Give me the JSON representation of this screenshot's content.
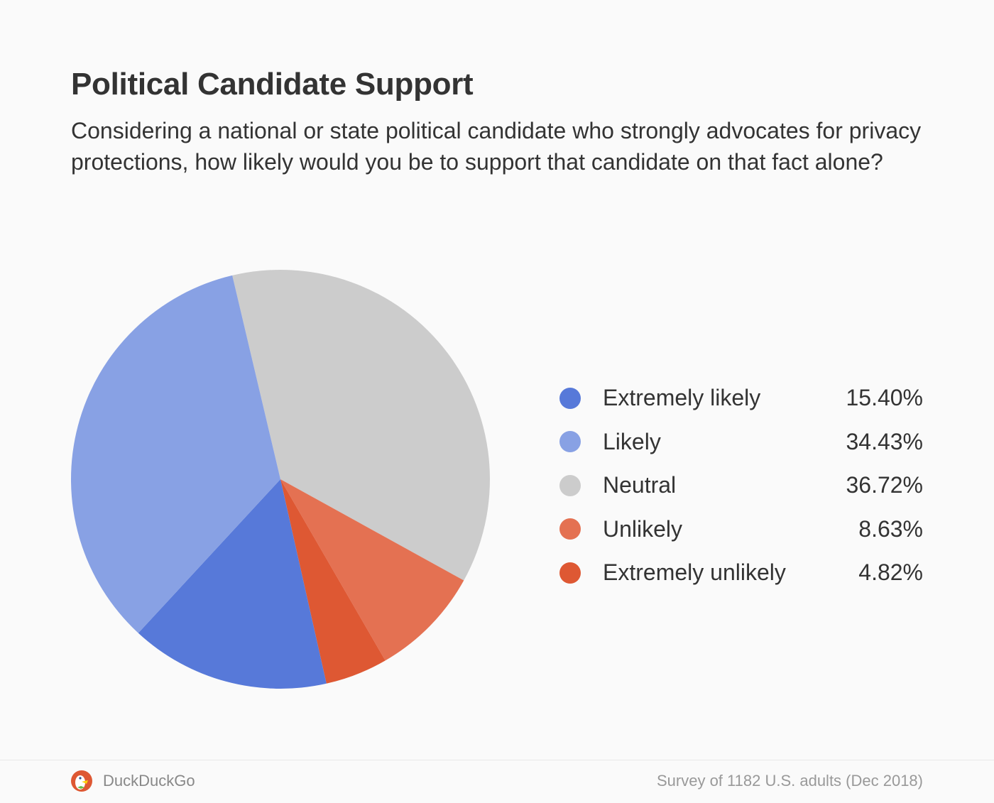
{
  "chart_data": {
    "type": "pie",
    "title": "Political Candidate Support",
    "subtitle": "Considering a national or state political candidate who strongly advocates for privacy protections, how likely would you be to support that candidate on that fact alone?",
    "legend_position": "right",
    "slices": [
      {
        "label": "Extremely likely",
        "value": 15.4,
        "display": "15.40%",
        "color": "#5779d9"
      },
      {
        "label": "Likely",
        "value": 34.43,
        "display": "34.43%",
        "color": "#88a1e4"
      },
      {
        "label": "Neutral",
        "value": 36.72,
        "display": "36.72%",
        "color": "#cccccc"
      },
      {
        "label": "Unlikely",
        "value": 8.63,
        "display": "8.63%",
        "color": "#e47152"
      },
      {
        "label": "Extremely unlikely",
        "value": 4.82,
        "display": "4.82%",
        "color": "#de5833"
      }
    ]
  },
  "footer": {
    "brand": "DuckDuckGo",
    "source": "Survey of 1182 U.S. adults (Dec 2018)"
  }
}
